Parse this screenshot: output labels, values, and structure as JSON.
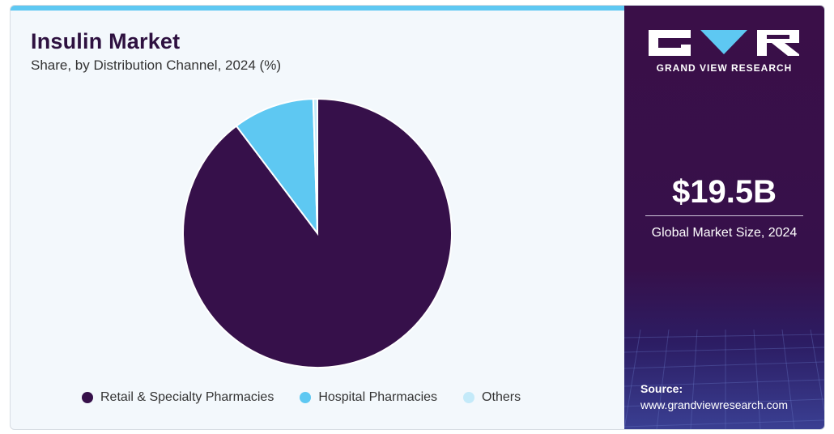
{
  "header": {
    "title": "Insulin Market",
    "subtitle": "Share, by Distribution Channel, 2024 (%)"
  },
  "chart_data": {
    "type": "pie",
    "title": "Insulin Market",
    "subtitle": "Share, by Distribution Channel, 2024 (%)",
    "slices": [
      {
        "label": "Retail & Specialty Pharmacies",
        "value": 89.7,
        "color": "#36104a"
      },
      {
        "label": "Hospital Pharmacies",
        "value": 9.8,
        "color": "#5ec8f2"
      },
      {
        "label": "Others",
        "value": 0.5,
        "color": "#c4eaf9"
      }
    ],
    "legend_position": "bottom"
  },
  "sidebar": {
    "brand": "GRAND VIEW RESEARCH",
    "market_size_value": "$19.5B",
    "market_size_label": "Global Market Size, 2024",
    "source_label": "Source:",
    "source_url": "www.grandviewresearch.com"
  },
  "colors": {
    "accent_bar": "#5ec8f2",
    "panel_dark": "#36104a",
    "background": "#f3f8fc"
  }
}
